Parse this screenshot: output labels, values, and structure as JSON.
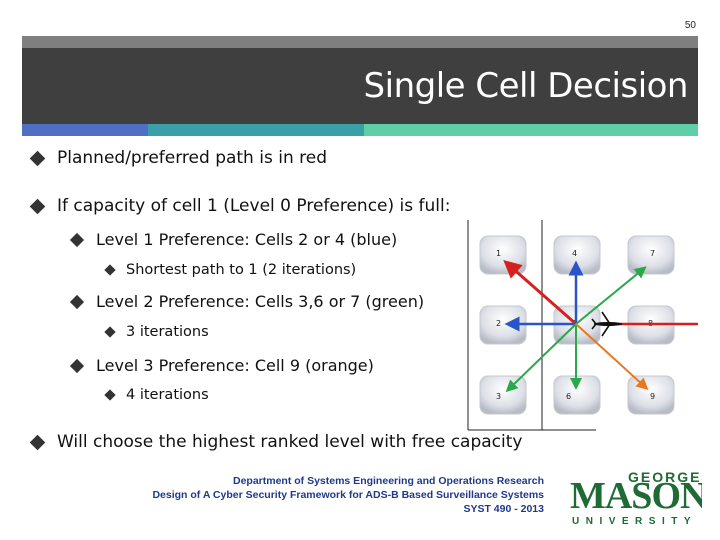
{
  "slide_number": "50",
  "title": "Single Cell Decision",
  "bullets": {
    "b1": "Planned/preferred path is in red",
    "b2": "If capacity of cell 1 (Level 0 Preference) is full:",
    "b2_1": "Level 1 Preference: Cells 2 or 4 (blue)",
    "b2_1_1": "Shortest path to 1 (2 iterations)",
    "b2_2": "Level 2 Preference: Cells 3,6 or 7 (green)",
    "b2_2_1": "3 iterations",
    "b2_3": "Level 3 Preference: Cell 9 (orange)",
    "b2_3_1": "4 iterations",
    "b3": "Will choose the highest ranked level with free capacity"
  },
  "diagram": {
    "cells": [
      "1",
      "4",
      "7",
      "2",
      "5",
      "8",
      "3",
      "6",
      "9"
    ],
    "colors": {
      "red": "#d62020",
      "blue": "#2a55c8",
      "green": "#2aa84a",
      "orange": "#e8781e"
    }
  },
  "footer": {
    "line1": "Department of Systems Engineering and Operations Research",
    "line2": "Design of A Cyber Security Framework for ADS-B Based Surveillance Systems",
    "line3": "SYST 490 - 2013"
  },
  "logo": {
    "george": "GEORGE",
    "mason": "MASON",
    "university": "UNIVERSITY",
    "color": "#1e6b35"
  }
}
